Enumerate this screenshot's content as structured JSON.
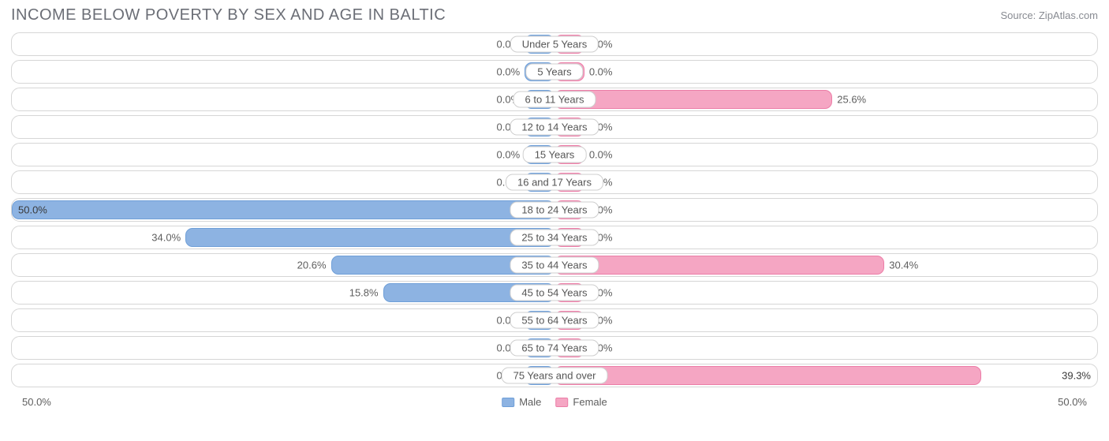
{
  "title": "INCOME BELOW POVERTY BY SEX AND AGE IN BALTIC",
  "source": "Source: ZipAtlas.com",
  "axis_max": 50.0,
  "axis_label_left": "50.0%",
  "axis_label_right": "50.0%",
  "min_bar_pct": 5.5,
  "colors": {
    "male_fill": "#8db3e2",
    "male_border": "#6f9fd8",
    "female_fill": "#f5a6c3",
    "female_border": "#ec7da7",
    "text": "#5e5e5e",
    "title_text": "#6b6e76",
    "row_border": "#d6d6d6",
    "pill_border": "#cfcfcf",
    "bg": "#ffffff"
  },
  "legend": {
    "male": "Male",
    "female": "Female"
  },
  "rows": [
    {
      "label": "Under 5 Years",
      "male": 0.0,
      "female": 0.0
    },
    {
      "label": "5 Years",
      "male": 0.0,
      "female": 0.0
    },
    {
      "label": "6 to 11 Years",
      "male": 0.0,
      "female": 25.6
    },
    {
      "label": "12 to 14 Years",
      "male": 0.0,
      "female": 0.0
    },
    {
      "label": "15 Years",
      "male": 0.0,
      "female": 0.0
    },
    {
      "label": "16 and 17 Years",
      "male": 0.0,
      "female": 0.0
    },
    {
      "label": "18 to 24 Years",
      "male": 50.0,
      "female": 0.0
    },
    {
      "label": "25 to 34 Years",
      "male": 34.0,
      "female": 0.0
    },
    {
      "label": "35 to 44 Years",
      "male": 20.6,
      "female": 30.4
    },
    {
      "label": "45 to 54 Years",
      "male": 15.8,
      "female": 0.0
    },
    {
      "label": "55 to 64 Years",
      "male": 0.0,
      "female": 0.0
    },
    {
      "label": "65 to 74 Years",
      "male": 0.0,
      "female": 0.0
    },
    {
      "label": "75 Years and over",
      "male": 0.0,
      "female": 39.3
    }
  ]
}
